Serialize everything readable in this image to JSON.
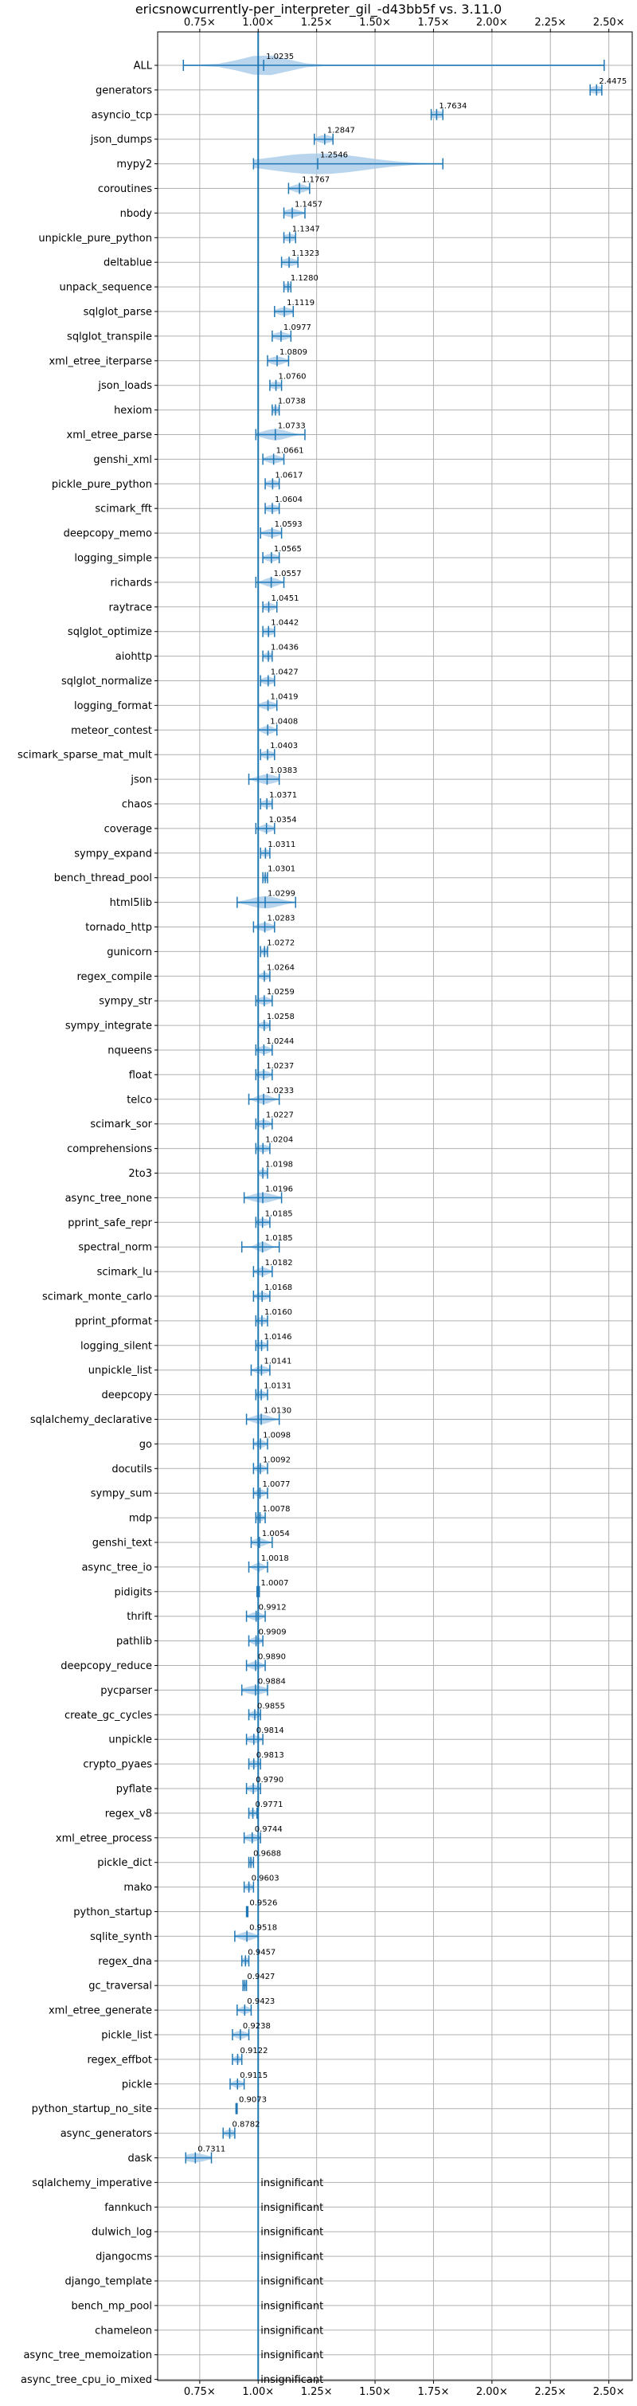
{
  "chart_data": {
    "type": "violin",
    "title": "ericsnowcurrently-per_interpreter_gil_-d43bb5f vs. 3.11.0",
    "xlabel": "",
    "ylabel": "",
    "xlim": [
      0.57,
      2.6
    ],
    "x_ticks": [
      0.75,
      1.0,
      1.25,
      1.5,
      1.75,
      2.0,
      2.25,
      2.5
    ],
    "x_tick_labels": [
      "0.75×",
      "1.00×",
      "1.25×",
      "1.50×",
      "1.75×",
      "2.00×",
      "2.25×",
      "2.50×"
    ],
    "reference_line": 1.0,
    "grid": true,
    "color": "#1f77b4",
    "violin_color": "#a6cbe8",
    "insignificant_text": "insignificant",
    "benchmarks": [
      {
        "name": "ALL",
        "value": 1.0235,
        "label": "1.0235",
        "min": 0.68,
        "max": 2.48,
        "spread": 0.1
      },
      {
        "name": "generators",
        "value": 2.4475,
        "label": "2.4475",
        "min": 2.42,
        "max": 2.47,
        "spread": 0.03
      },
      {
        "name": "asyncio_tcp",
        "value": 1.7634,
        "label": "1.7634",
        "min": 1.74,
        "max": 1.79,
        "spread": 0.03
      },
      {
        "name": "json_dumps",
        "value": 1.2847,
        "label": "1.2847",
        "min": 1.24,
        "max": 1.32,
        "spread": 0.03
      },
      {
        "name": "mypy2",
        "value": 1.2546,
        "label": "1.2546",
        "min": 0.98,
        "max": 1.79,
        "spread": 0.2
      },
      {
        "name": "coroutines",
        "value": 1.1767,
        "label": "1.1767",
        "min": 1.13,
        "max": 1.22,
        "spread": 0.03
      },
      {
        "name": "nbody",
        "value": 1.1457,
        "label": "1.1457",
        "min": 1.11,
        "max": 1.2,
        "spread": 0.03
      },
      {
        "name": "unpickle_pure_python",
        "value": 1.1347,
        "label": "1.1347",
        "min": 1.11,
        "max": 1.16,
        "spread": 0.025
      },
      {
        "name": "deltablue",
        "value": 1.1323,
        "label": "1.1323",
        "min": 1.1,
        "max": 1.17,
        "spread": 0.03
      },
      {
        "name": "unpack_sequence",
        "value": 1.128,
        "label": "1.1280",
        "min": 1.11,
        "max": 1.14,
        "spread": 0.02
      },
      {
        "name": "sqlglot_parse",
        "value": 1.1119,
        "label": "1.1119",
        "min": 1.07,
        "max": 1.15,
        "spread": 0.03
      },
      {
        "name": "sqlglot_transpile",
        "value": 1.0977,
        "label": "1.0977",
        "min": 1.06,
        "max": 1.14,
        "spread": 0.03
      },
      {
        "name": "xml_etree_iterparse",
        "value": 1.0809,
        "label": "1.0809",
        "min": 1.04,
        "max": 1.13,
        "spread": 0.03
      },
      {
        "name": "json_loads",
        "value": 1.076,
        "label": "1.0760",
        "min": 1.05,
        "max": 1.1,
        "spread": 0.025
      },
      {
        "name": "hexiom",
        "value": 1.0738,
        "label": "1.0738",
        "min": 1.06,
        "max": 1.09,
        "spread": 0.025
      },
      {
        "name": "xml_etree_parse",
        "value": 1.0733,
        "label": "1.0733",
        "min": 0.99,
        "max": 1.2,
        "spread": 0.05
      },
      {
        "name": "genshi_xml",
        "value": 1.0661,
        "label": "1.0661",
        "min": 1.02,
        "max": 1.11,
        "spread": 0.03
      },
      {
        "name": "pickle_pure_python",
        "value": 1.0617,
        "label": "1.0617",
        "min": 1.03,
        "max": 1.09,
        "spread": 0.025
      },
      {
        "name": "scimark_fft",
        "value": 1.0604,
        "label": "1.0604",
        "min": 1.03,
        "max": 1.09,
        "spread": 0.025
      },
      {
        "name": "deepcopy_memo",
        "value": 1.0593,
        "label": "1.0593",
        "min": 1.01,
        "max": 1.1,
        "spread": 0.03
      },
      {
        "name": "logging_simple",
        "value": 1.0565,
        "label": "1.0565",
        "min": 1.02,
        "max": 1.09,
        "spread": 0.025
      },
      {
        "name": "richards",
        "value": 1.0557,
        "label": "1.0557",
        "min": 0.99,
        "max": 1.11,
        "spread": 0.03
      },
      {
        "name": "raytrace",
        "value": 1.0451,
        "label": "1.0451",
        "min": 1.02,
        "max": 1.08,
        "spread": 0.025
      },
      {
        "name": "sqlglot_optimize",
        "value": 1.0442,
        "label": "1.0442",
        "min": 1.02,
        "max": 1.07,
        "spread": 0.025
      },
      {
        "name": "aiohttp",
        "value": 1.0436,
        "label": "1.0436",
        "min": 1.02,
        "max": 1.06,
        "spread": 0.02
      },
      {
        "name": "sqlglot_normalize",
        "value": 1.0427,
        "label": "1.0427",
        "min": 1.01,
        "max": 1.07,
        "spread": 0.025
      },
      {
        "name": "logging_format",
        "value": 1.0419,
        "label": "1.0419",
        "min": 1.0,
        "max": 1.08,
        "spread": 0.03
      },
      {
        "name": "meteor_contest",
        "value": 1.0408,
        "label": "1.0408",
        "min": 1.0,
        "max": 1.08,
        "spread": 0.025
      },
      {
        "name": "scimark_sparse_mat_mult",
        "value": 1.0403,
        "label": "1.0403",
        "min": 1.01,
        "max": 1.07,
        "spread": 0.025
      },
      {
        "name": "json",
        "value": 1.0383,
        "label": "1.0383",
        "min": 0.96,
        "max": 1.09,
        "spread": 0.04
      },
      {
        "name": "chaos",
        "value": 1.0371,
        "label": "1.0371",
        "min": 1.01,
        "max": 1.06,
        "spread": 0.025
      },
      {
        "name": "coverage",
        "value": 1.0354,
        "label": "1.0354",
        "min": 0.99,
        "max": 1.07,
        "spread": 0.025
      },
      {
        "name": "sympy_expand",
        "value": 1.0311,
        "label": "1.0311",
        "min": 1.01,
        "max": 1.05,
        "spread": 0.02
      },
      {
        "name": "bench_thread_pool",
        "value": 1.0301,
        "label": "1.0301",
        "min": 1.02,
        "max": 1.04,
        "spread": 0.015
      },
      {
        "name": "html5lib",
        "value": 1.0299,
        "label": "1.0299",
        "min": 0.91,
        "max": 1.16,
        "spread": 0.06
      },
      {
        "name": "tornado_http",
        "value": 1.0283,
        "label": "1.0283",
        "min": 0.98,
        "max": 1.07,
        "spread": 0.03
      },
      {
        "name": "gunicorn",
        "value": 1.0272,
        "label": "1.0272",
        "min": 1.01,
        "max": 1.04,
        "spread": 0.015
      },
      {
        "name": "regex_compile",
        "value": 1.0264,
        "label": "1.0264",
        "min": 1.0,
        "max": 1.05,
        "spread": 0.02
      },
      {
        "name": "sympy_str",
        "value": 1.0259,
        "label": "1.0259",
        "min": 0.99,
        "max": 1.06,
        "spread": 0.025
      },
      {
        "name": "sympy_integrate",
        "value": 1.0258,
        "label": "1.0258",
        "min": 1.0,
        "max": 1.05,
        "spread": 0.02
      },
      {
        "name": "nqueens",
        "value": 1.0244,
        "label": "1.0244",
        "min": 0.99,
        "max": 1.06,
        "spread": 0.025
      },
      {
        "name": "float",
        "value": 1.0237,
        "label": "1.0237",
        "min": 0.99,
        "max": 1.06,
        "spread": 0.025
      },
      {
        "name": "telco",
        "value": 1.0233,
        "label": "1.0233",
        "min": 0.96,
        "max": 1.09,
        "spread": 0.03
      },
      {
        "name": "scimark_sor",
        "value": 1.0227,
        "label": "1.0227",
        "min": 0.99,
        "max": 1.06,
        "spread": 0.025
      },
      {
        "name": "comprehensions",
        "value": 1.0204,
        "label": "1.0204",
        "min": 0.99,
        "max": 1.05,
        "spread": 0.025
      },
      {
        "name": "2to3",
        "value": 1.0198,
        "label": "1.0198",
        "min": 1.0,
        "max": 1.04,
        "spread": 0.02
      },
      {
        "name": "async_tree_none",
        "value": 1.0196,
        "label": "1.0196",
        "min": 0.94,
        "max": 1.1,
        "spread": 0.045
      },
      {
        "name": "pprint_safe_repr",
        "value": 1.0185,
        "label": "1.0185",
        "min": 0.99,
        "max": 1.05,
        "spread": 0.025
      },
      {
        "name": "spectral_norm",
        "value": 1.0185,
        "label": "1.0185",
        "min": 0.93,
        "max": 1.09,
        "spread": 0.025
      },
      {
        "name": "scimark_lu",
        "value": 1.0182,
        "label": "1.0182",
        "min": 0.98,
        "max": 1.06,
        "spread": 0.025
      },
      {
        "name": "scimark_monte_carlo",
        "value": 1.0168,
        "label": "1.0168",
        "min": 0.98,
        "max": 1.05,
        "spread": 0.025
      },
      {
        "name": "pprint_pformat",
        "value": 1.016,
        "label": "1.0160",
        "min": 0.99,
        "max": 1.04,
        "spread": 0.02
      },
      {
        "name": "logging_silent",
        "value": 1.0146,
        "label": "1.0146",
        "min": 0.99,
        "max": 1.04,
        "spread": 0.02
      },
      {
        "name": "unpickle_list",
        "value": 1.0141,
        "label": "1.0141",
        "min": 0.97,
        "max": 1.05,
        "spread": 0.025
      },
      {
        "name": "deepcopy",
        "value": 1.0131,
        "label": "1.0131",
        "min": 0.99,
        "max": 1.04,
        "spread": 0.02
      },
      {
        "name": "sqlalchemy_declarative",
        "value": 1.013,
        "label": "1.0130",
        "min": 0.95,
        "max": 1.09,
        "spread": 0.035
      },
      {
        "name": "go",
        "value": 1.0098,
        "label": "1.0098",
        "min": 0.98,
        "max": 1.04,
        "spread": 0.02
      },
      {
        "name": "docutils",
        "value": 1.0092,
        "label": "1.0092",
        "min": 0.98,
        "max": 1.04,
        "spread": 0.02
      },
      {
        "name": "sympy_sum",
        "value": 1.0077,
        "label": "1.0077",
        "min": 0.98,
        "max": 1.04,
        "spread": 0.02
      },
      {
        "name": "mdp",
        "value": 1.0078,
        "label": "1.0078",
        "min": 0.99,
        "max": 1.03,
        "spread": 0.015
      },
      {
        "name": "genshi_text",
        "value": 1.0054,
        "label": "1.0054",
        "min": 0.97,
        "max": 1.06,
        "spread": 0.025
      },
      {
        "name": "async_tree_io",
        "value": 1.0018,
        "label": "1.0018",
        "min": 0.96,
        "max": 1.04,
        "spread": 0.02
      },
      {
        "name": "pidigits",
        "value": 1.0007,
        "label": "1.0007",
        "min": 0.995,
        "max": 1.005,
        "spread": 0.008
      },
      {
        "name": "thrift",
        "value": 0.9912,
        "label": "0.9912",
        "min": 0.95,
        "max": 1.03,
        "spread": 0.025
      },
      {
        "name": "pathlib",
        "value": 0.9909,
        "label": "0.9909",
        "min": 0.96,
        "max": 1.02,
        "spread": 0.02
      },
      {
        "name": "deepcopy_reduce",
        "value": 0.989,
        "label": "0.9890",
        "min": 0.95,
        "max": 1.03,
        "spread": 0.025
      },
      {
        "name": "pycparser",
        "value": 0.9884,
        "label": "0.9884",
        "min": 0.93,
        "max": 1.04,
        "spread": 0.04
      },
      {
        "name": "create_gc_cycles",
        "value": 0.9855,
        "label": "0.9855",
        "min": 0.96,
        "max": 1.01,
        "spread": 0.02
      },
      {
        "name": "unpickle",
        "value": 0.9814,
        "label": "0.9814",
        "min": 0.95,
        "max": 1.02,
        "spread": 0.025
      },
      {
        "name": "crypto_pyaes",
        "value": 0.9813,
        "label": "0.9813",
        "min": 0.96,
        "max": 1.01,
        "spread": 0.02
      },
      {
        "name": "pyflate",
        "value": 0.979,
        "label": "0.9790",
        "min": 0.95,
        "max": 1.01,
        "spread": 0.02
      },
      {
        "name": "regex_v8",
        "value": 0.9771,
        "label": "0.9771",
        "min": 0.96,
        "max": 0.995,
        "spread": 0.015
      },
      {
        "name": "xml_etree_process",
        "value": 0.9744,
        "label": "0.9744",
        "min": 0.94,
        "max": 1.01,
        "spread": 0.025
      },
      {
        "name": "pickle_dict",
        "value": 0.9688,
        "label": "0.9688",
        "min": 0.96,
        "max": 0.98,
        "spread": 0.015
      },
      {
        "name": "mako",
        "value": 0.9603,
        "label": "0.9603",
        "min": 0.94,
        "max": 0.98,
        "spread": 0.015
      },
      {
        "name": "python_startup",
        "value": 0.9526,
        "label": "0.9526",
        "min": 0.95,
        "max": 0.956,
        "spread": 0.006
      },
      {
        "name": "sqlite_synth",
        "value": 0.9518,
        "label": "0.9518",
        "min": 0.9,
        "max": 1.0,
        "spread": 0.03
      },
      {
        "name": "regex_dna",
        "value": 0.9457,
        "label": "0.9457",
        "min": 0.93,
        "max": 0.96,
        "spread": 0.012
      },
      {
        "name": "gc_traversal",
        "value": 0.9427,
        "label": "0.9427",
        "min": 0.935,
        "max": 0.95,
        "spread": 0.008
      },
      {
        "name": "xml_etree_generate",
        "value": 0.9423,
        "label": "0.9423",
        "min": 0.91,
        "max": 0.97,
        "spread": 0.02
      },
      {
        "name": "pickle_list",
        "value": 0.9238,
        "label": "0.9238",
        "min": 0.89,
        "max": 0.96,
        "spread": 0.025
      },
      {
        "name": "regex_effbot",
        "value": 0.9122,
        "label": "0.9122",
        "min": 0.89,
        "max": 0.93,
        "spread": 0.015
      },
      {
        "name": "pickle",
        "value": 0.9115,
        "label": "0.9115",
        "min": 0.88,
        "max": 0.94,
        "spread": 0.02
      },
      {
        "name": "python_startup_no_site",
        "value": 0.9073,
        "label": "0.9073",
        "min": 0.905,
        "max": 0.91,
        "spread": 0.005
      },
      {
        "name": "async_generators",
        "value": 0.8782,
        "label": "0.8782",
        "min": 0.85,
        "max": 0.9,
        "spread": 0.02
      },
      {
        "name": "dask",
        "value": 0.7311,
        "label": "0.7311",
        "min": 0.69,
        "max": 0.8,
        "spread": 0.045
      },
      {
        "name": "sqlalchemy_imperative",
        "value": null,
        "label": "insignificant"
      },
      {
        "name": "fannkuch",
        "value": null,
        "label": "insignificant"
      },
      {
        "name": "dulwich_log",
        "value": null,
        "label": "insignificant"
      },
      {
        "name": "djangocms",
        "value": null,
        "label": "insignificant"
      },
      {
        "name": "django_template",
        "value": null,
        "label": "insignificant"
      },
      {
        "name": "bench_mp_pool",
        "value": null,
        "label": "insignificant"
      },
      {
        "name": "chameleon",
        "value": null,
        "label": "insignificant"
      },
      {
        "name": "async_tree_memoization",
        "value": null,
        "label": "insignificant"
      },
      {
        "name": "async_tree_cpu_io_mixed",
        "value": null,
        "label": "insignificant"
      }
    ]
  }
}
